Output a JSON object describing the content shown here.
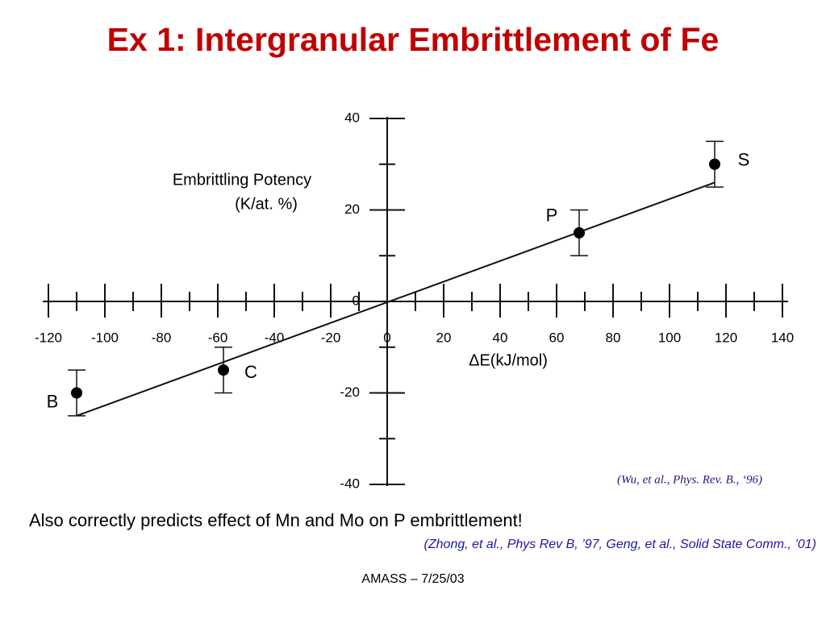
{
  "title": "Ex 1: Intergranular Embrittlement of Fe",
  "chart_data": {
    "type": "scatter",
    "y_label_lines": [
      "Embrittling Potency",
      "(K/at. %)"
    ],
    "x_label": "ΔE(kJ/mol)",
    "x": [
      -110,
      -58,
      68,
      116
    ],
    "values": [
      -20,
      -15,
      15,
      30
    ],
    "errors": [
      5,
      5,
      5,
      5
    ],
    "point_labels": [
      "B",
      "C",
      "P",
      "S"
    ],
    "color": "#000000",
    "fit_line": {
      "x": [
        -110,
        116
      ],
      "values": [
        -25,
        26
      ]
    },
    "xlim": [
      -122,
      142
    ],
    "ylim": [
      -40,
      40
    ],
    "xticks": [
      -120,
      -100,
      -80,
      -60,
      -40,
      -20,
      0,
      20,
      40,
      60,
      80,
      100,
      120,
      140
    ],
    "yticks": [
      -40,
      -20,
      0,
      20,
      40
    ]
  },
  "citation": "(Wu, et al., Phys. Rev. B., ‘96)",
  "note": "Also correctly predicts effect of Mn and Mo on P embrittlement!",
  "note_citation": "(Zhong, et al., Phys Rev B, ’97, Geng, et al., Solid State Comm., ’01)",
  "footer": "AMASS – 7/25/03"
}
